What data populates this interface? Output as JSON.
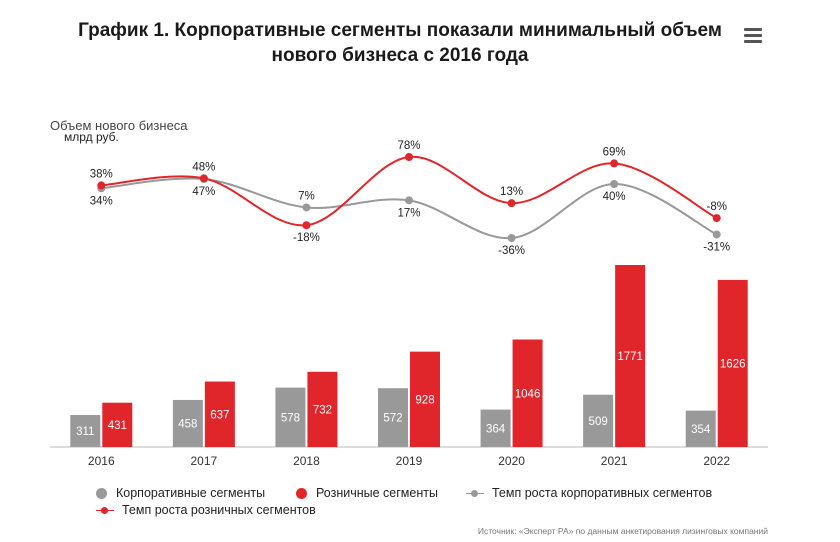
{
  "title": "График 1. Корпоративные сегменты показали минимальный объем нового бизнеса с 2016 года",
  "menu_icon": "hamburger-menu-icon",
  "chart_data": {
    "type": "bar+line",
    "categories": [
      "2016",
      "2017",
      "2018",
      "2019",
      "2020",
      "2021",
      "2022"
    ],
    "ylabel_top": "Объем нового бизнеса",
    "ylabel_unit": "млрд руб.",
    "series": [
      {
        "name": "Корпоративные сегменты",
        "kind": "bar",
        "color": "#999999",
        "values": [
          311,
          458,
          578,
          572,
          364,
          509,
          354
        ]
      },
      {
        "name": "Розничные сегменты",
        "kind": "bar",
        "color": "#e0262b",
        "values": [
          431,
          637,
          732,
          928,
          1046,
          1771,
          1626
        ]
      },
      {
        "name": "Темп роста корпоративных сегментов",
        "kind": "line",
        "color": "#999999",
        "values": [
          34,
          47,
          7,
          17,
          -36,
          40,
          -31
        ],
        "labels": [
          "34%",
          "47%",
          "7%",
          "17%",
          "-36%",
          "40%",
          "-31%"
        ]
      },
      {
        "name": "Темп роста розничных сегментов",
        "kind": "line",
        "color": "#e0262b",
        "values": [
          38,
          48,
          -18,
          78,
          13,
          69,
          -8
        ],
        "labels": [
          "38%",
          "48%",
          "-18%",
          "78%",
          "13%",
          "69%",
          "-8%"
        ]
      }
    ]
  },
  "source": "Источник: «Эксперт РА» по данным анкетирования лизинговых компаний"
}
